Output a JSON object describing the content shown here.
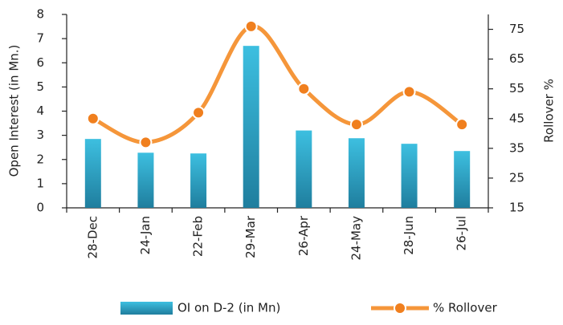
{
  "chart_data": {
    "type": "combo",
    "categories": [
      "28-Dec",
      "24-Jan",
      "22-Feb",
      "29-Mar",
      "26-Apr",
      "24-May",
      "28-Jun",
      "26-Jul"
    ],
    "series": [
      {
        "name": "OI on D-2 (in Mn)",
        "type": "bar",
        "color": "#2aa7cc",
        "values": [
          2.85,
          2.28,
          2.25,
          6.7,
          3.2,
          2.88,
          2.65,
          2.35
        ]
      },
      {
        "name": "% Rollover",
        "type": "line",
        "axis": "y2",
        "color": "#f5963a",
        "values": [
          45,
          37,
          47,
          76,
          55,
          43,
          54,
          43
        ]
      }
    ],
    "ylim": [
      0,
      8
    ],
    "yticks": [
      0,
      1,
      2,
      3,
      4,
      5,
      6,
      7,
      8
    ],
    "y2lim": [
      15,
      80
    ],
    "y2ticks": [
      15,
      25,
      35,
      45,
      55,
      65,
      75
    ],
    "ylabel": "Open Interest (in Mn.)",
    "y2label": "Rollover %"
  }
}
